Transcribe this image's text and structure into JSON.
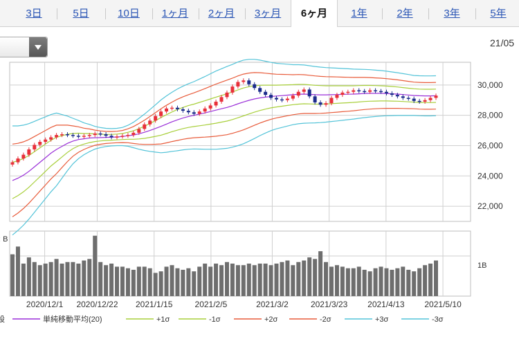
{
  "tabs": [
    {
      "label": "3日",
      "active": false
    },
    {
      "label": "5日",
      "active": false
    },
    {
      "label": "10日",
      "active": false
    },
    {
      "label": "1ヶ月",
      "active": false
    },
    {
      "label": "2ヶ月",
      "active": false
    },
    {
      "label": "3ヶ月",
      "active": false
    },
    {
      "label": "6ヶ月",
      "active": true
    },
    {
      "label": "1年",
      "active": false
    },
    {
      "label": "2年",
      "active": false
    },
    {
      "label": "3年",
      "active": false
    },
    {
      "label": "5年",
      "active": false
    }
  ],
  "date_label": "21/05",
  "volume_axis_label": ": B",
  "legend_prefix": "設",
  "chart_data": {
    "type": "line",
    "price": {
      "ylim": [
        21000,
        31500
      ],
      "yticks": [
        22000,
        24000,
        26000,
        28000,
        30000
      ],
      "ytick_labels": [
        "22,000",
        "24,000",
        "26,000",
        "28,000",
        "30,000"
      ],
      "close": [
        24900,
        25150,
        25400,
        25750,
        26050,
        26250,
        26400,
        26550,
        26700,
        26750,
        26700,
        26650,
        26600,
        26650,
        26700,
        26800,
        26750,
        26650,
        26550,
        26600,
        26650,
        26700,
        26850,
        27100,
        27400,
        27650,
        27950,
        28250,
        28450,
        28500,
        28400,
        28300,
        28200,
        28100,
        28250,
        28450,
        28650,
        28900,
        29200,
        29500,
        29900,
        30200,
        30300,
        30050,
        29800,
        29550,
        29350,
        29150,
        29050,
        29000,
        29100,
        29300,
        29550,
        29700,
        29250,
        28850,
        28700,
        28800,
        29150,
        29350,
        29500,
        29550,
        29650,
        29600,
        29550,
        29650,
        29600,
        29550,
        29450,
        29350,
        29250,
        29150,
        29100,
        28950,
        28900,
        29000,
        29150,
        29300
      ],
      "ma20": [
        23700,
        23850,
        24050,
        24300,
        24600,
        24900,
        25200,
        25500,
        25750,
        25950,
        26150,
        26300,
        26400,
        26450,
        26500,
        26520,
        26530,
        26540,
        26550,
        26570,
        26600,
        26650,
        26700,
        26780,
        26880,
        27000,
        27130,
        27270,
        27420,
        27570,
        27700,
        27820,
        27920,
        28000,
        28080,
        28160,
        28250,
        28340,
        28430,
        28520,
        28630,
        28760,
        28880,
        28990,
        29080,
        29150,
        29200,
        29240,
        29270,
        29300,
        29330,
        29360,
        29390,
        29400,
        29380,
        29360,
        29350,
        29350,
        29360,
        29370,
        29380,
        29390,
        29400,
        29420,
        29440,
        29450,
        29450,
        29450,
        29440,
        29420,
        29400,
        29370,
        29340,
        29310,
        29290,
        29280,
        29280,
        29290
      ],
      "sigma": [
        1200,
        1150,
        1100,
        1050,
        1000,
        950,
        900,
        850,
        800,
        700,
        600,
        500,
        420,
        350,
        300,
        250,
        220,
        200,
        190,
        190,
        200,
        230,
        280,
        340,
        400,
        460,
        520,
        580,
        620,
        650,
        680,
        700,
        720,
        740,
        770,
        800,
        830,
        860,
        880,
        900,
        910,
        920,
        920,
        900,
        870,
        830,
        790,
        750,
        720,
        700,
        680,
        660,
        650,
        640,
        630,
        620,
        610,
        600,
        590,
        580,
        570,
        560,
        550,
        540,
        530,
        520,
        510,
        500,
        490,
        480,
        470,
        460,
        450,
        440,
        440,
        440,
        440,
        440
      ],
      "series_names": [
        "単純移動平均(20)",
        "+1σ",
        "-1σ",
        "+2σ",
        "-2σ",
        "+3σ",
        "-3σ"
      ],
      "colors": {
        "ma": "#9a2fd8",
        "s1": "#a8cf3a",
        "s2": "#e85b3a",
        "s3": "#52c3d8",
        "up": "#e8303a",
        "down": "#1c2c8c"
      }
    },
    "volume": {
      "tick_label": "1B",
      "values": [
        1.35,
        1.6,
        1.05,
        1.25,
        1.1,
        1.0,
        1.05,
        1.1,
        1.2,
        1.05,
        1.1,
        1.1,
        1.05,
        1.15,
        1.2,
        1.95,
        1.1,
        1.0,
        1.05,
        0.95,
        0.95,
        0.9,
        0.85,
        0.95,
        0.95,
        0.9,
        0.75,
        0.8,
        0.95,
        1.0,
        0.9,
        0.85,
        0.9,
        0.8,
        0.95,
        1.05,
        0.95,
        1.05,
        1.0,
        1.1,
        1.05,
        1.0,
        1.0,
        1.05,
        1.0,
        1.05,
        1.05,
        1.0,
        1.05,
        1.1,
        1.15,
        1.0,
        1.1,
        1.15,
        1.25,
        1.2,
        1.45,
        1.1,
        0.95,
        1.0,
        0.95,
        0.9,
        0.9,
        0.95,
        0.85,
        0.8,
        0.9,
        0.95,
        0.9,
        0.85,
        0.9,
        0.95,
        0.85,
        0.8,
        0.9,
        1.0,
        1.05,
        1.15
      ]
    },
    "x_labels": [
      "2020/12/1",
      "2020/12/22",
      "2021/1/15",
      "2021/2/5",
      "2021/3/2",
      "2021/3/23",
      "2021/4/13",
      "2021/5/10"
    ],
    "grid": true
  }
}
